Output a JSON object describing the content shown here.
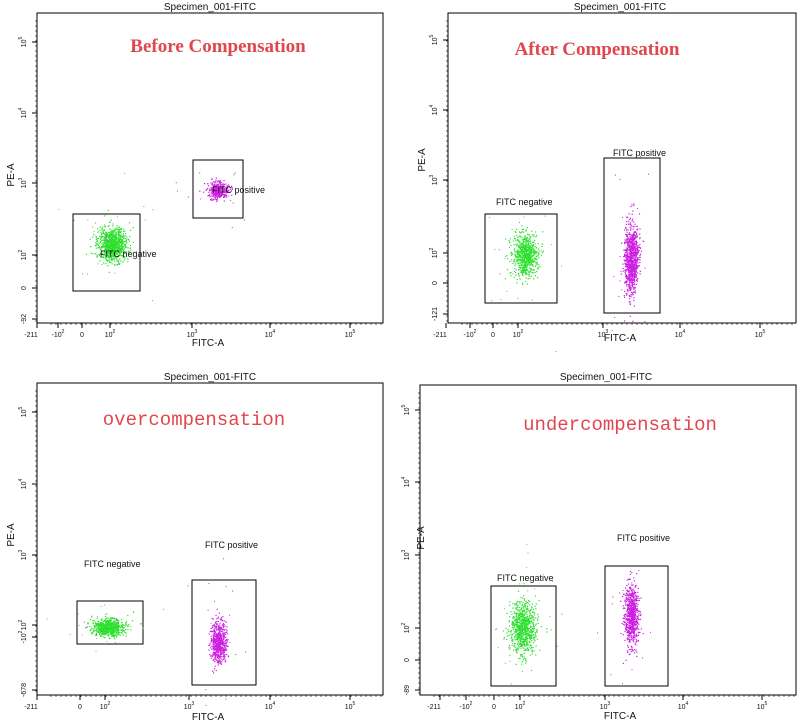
{
  "figure": {
    "colors": {
      "negative_population": "#2ee02e",
      "positive_population": "#cc1fe0",
      "stray_events": "#6a6ad0",
      "heading_red": "#e0474d",
      "frame": "#000000"
    }
  },
  "chart_data": [
    {
      "type": "scatter",
      "title": "Specimen_001-FITC",
      "heading": "Before Compensation",
      "xlabel": "FITC-A",
      "ylabel": "PE-A",
      "x_scale": "biexponential",
      "y_scale": "biexponential",
      "x_tick_labels": [
        "-211",
        "-10",
        "0",
        "10",
        "10",
        "10",
        "10"
      ],
      "x_tick_exponents": [
        "",
        "2",
        "",
        "2",
        "3",
        "4",
        "5"
      ],
      "y_tick_labels": [
        "-92",
        "0",
        "10",
        "10",
        "10",
        "10"
      ],
      "y_tick_exponents": [
        "",
        "",
        "2",
        "3",
        "4",
        "5"
      ],
      "gates": [
        {
          "label": "FITC negative",
          "x_range": [
            -60,
            300
          ],
          "y_range": [
            -15,
            300
          ]
        },
        {
          "label": "FITC positive",
          "x_range": [
            1000,
            4000
          ],
          "y_range": [
            350,
            1800
          ]
        }
      ],
      "populations": [
        {
          "gate": "FITC negative",
          "center": [
            110,
            110
          ],
          "events": 900
        },
        {
          "gate": "FITC positive",
          "center": [
            1900,
            700
          ],
          "events": 350
        }
      ]
    },
    {
      "type": "scatter",
      "title": "Specimen_001-FITC",
      "heading": "After Compensation",
      "xlabel": "FITC-A",
      "ylabel": "PE-A",
      "x_scale": "biexponential",
      "y_scale": "biexponential",
      "x_tick_labels": [
        "-211",
        "-10",
        "0",
        "10",
        "10",
        "10",
        "10"
      ],
      "x_tick_exponents": [
        "",
        "2",
        "",
        "2",
        "3",
        "4",
        "5"
      ],
      "y_tick_labels": [
        "-121",
        "0",
        "10",
        "10",
        "10",
        "10"
      ],
      "y_tick_exponents": [
        "",
        "",
        "2",
        "3",
        "4",
        "5"
      ],
      "gates": [
        {
          "label": "FITC negative",
          "x_range": [
            -60,
            300
          ],
          "y_range": [
            -40,
            400
          ]
        },
        {
          "label": "FITC positive",
          "x_range": [
            1000,
            5000
          ],
          "y_range": [
            -60,
            1500
          ]
        }
      ],
      "populations": [
        {
          "gate": "FITC negative",
          "center": [
            100,
            100
          ],
          "events": 700
        },
        {
          "gate": "FITC positive",
          "center": [
            2400,
            80
          ],
          "events": 900
        }
      ]
    },
    {
      "type": "scatter",
      "title": "Specimen_001-FITC",
      "heading": "overcompensation",
      "xlabel": "FITC-A",
      "ylabel": "PE-A",
      "x_scale": "biexponential",
      "y_scale": "biexponential",
      "x_tick_labels": [
        "-211",
        "0",
        "10",
        "10",
        "10",
        "10"
      ],
      "x_tick_exponents": [
        "",
        "",
        "2",
        "3",
        "4",
        "5"
      ],
      "y_tick_labels": [
        "-678",
        "-10",
        "10",
        "10",
        "10",
        "10"
      ],
      "y_tick_exponents": [
        "",
        "2",
        "2",
        "3",
        "4",
        "5"
      ],
      "gates": [
        {
          "label": "FITC negative",
          "x_range": [
            -60,
            300
          ],
          "y_range": [
            -120,
            200
          ]
        },
        {
          "label": "FITC positive",
          "x_range": [
            1000,
            4500
          ],
          "y_range": [
            -600,
            600
          ]
        }
      ],
      "populations": [
        {
          "gate": "FITC negative",
          "center": [
            110,
            20
          ],
          "events": 700
        },
        {
          "gate": "FITC positive",
          "center": [
            2300,
            -200
          ],
          "events": 600
        }
      ]
    },
    {
      "type": "scatter",
      "title": "Specimen_001-FITC",
      "heading": "undercompensation",
      "xlabel": "FITC-A",
      "ylabel": "PE-A",
      "x_scale": "biexponential",
      "y_scale": "biexponential",
      "x_tick_labels": [
        "-211",
        "-10",
        "0",
        "10",
        "10",
        "10",
        "10"
      ],
      "x_tick_exponents": [
        "",
        "2",
        "",
        "2",
        "3",
        "4",
        "5"
      ],
      "y_tick_labels": [
        "-89",
        "0",
        "10",
        "10",
        "10",
        "10"
      ],
      "y_tick_exponents": [
        "",
        "",
        "2",
        "3",
        "4",
        "5"
      ],
      "gates": [
        {
          "label": "FITC negative",
          "x_range": [
            -60,
            300
          ],
          "y_range": [
            -80,
            420
          ]
        },
        {
          "label": "FITC positive",
          "x_range": [
            1000,
            4500
          ],
          "y_range": [
            -80,
            700
          ]
        }
      ],
      "populations": [
        {
          "gate": "FITC negative",
          "center": [
            110,
            100
          ],
          "events": 800
        },
        {
          "gate": "FITC positive",
          "center": [
            2300,
            180
          ],
          "events": 700
        }
      ]
    }
  ]
}
